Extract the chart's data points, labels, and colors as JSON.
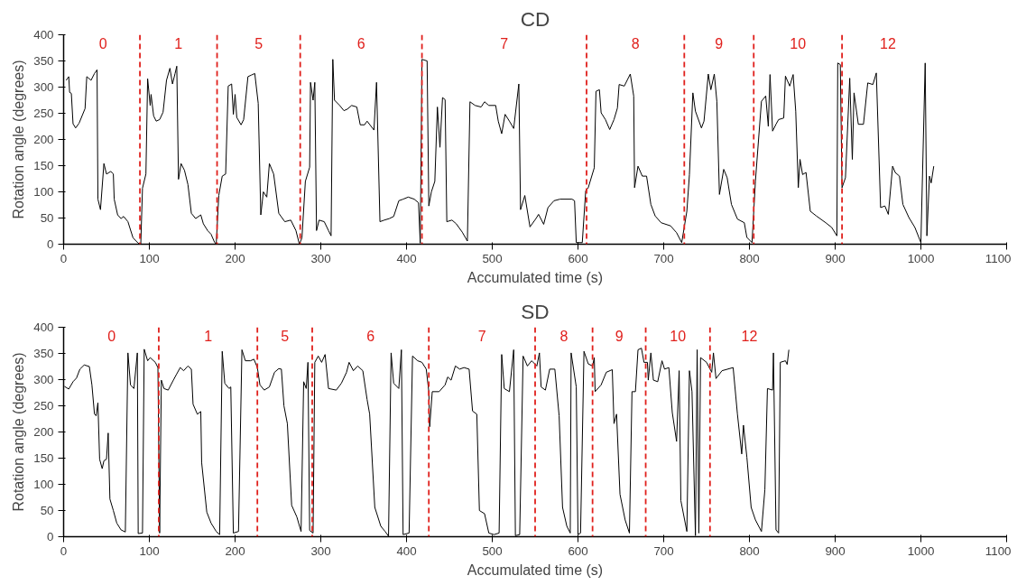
{
  "chart_data": [
    {
      "type": "line",
      "title": "CD",
      "xlabel": "Accumulated time (s)",
      "ylabel": "Rotation angle (degrees)",
      "xlim": [
        0,
        1100
      ],
      "xticks": [
        0,
        100,
        200,
        300,
        400,
        500,
        600,
        700,
        800,
        900,
        1000,
        1100
      ],
      "ylim": [
        0,
        400
      ],
      "yticks": [
        0,
        50,
        100,
        150,
        200,
        250,
        300,
        350,
        400
      ],
      "grid": false,
      "marker": "none",
      "line_style": "solid",
      "series": [
        {
          "color": "#000000",
          "x": [
            3,
            6,
            7,
            9,
            11,
            14,
            18,
            25,
            27,
            32,
            36,
            39,
            40,
            43,
            47,
            50,
            55,
            58,
            59,
            63,
            67,
            70,
            75,
            81,
            87,
            90,
            92,
            96,
            98,
            101,
            102,
            105,
            108,
            112,
            116,
            120,
            124,
            127,
            130,
            132,
            134,
            137,
            141,
            145,
            149,
            154,
            160,
            163,
            168,
            172,
            176,
            178,
            181,
            185,
            189,
            192,
            196,
            198,
            200,
            202,
            207,
            210,
            215,
            219,
            223,
            227,
            230,
            233,
            237,
            240,
            245,
            251,
            258,
            265,
            271,
            275,
            278,
            282,
            287,
            288,
            291,
            293,
            295,
            298,
            304,
            309,
            312,
            314,
            316,
            322,
            327,
            331,
            336,
            342,
            346,
            351,
            354,
            362,
            365,
            369,
            374,
            380,
            385,
            391,
            396,
            402,
            409,
            414,
            416,
            418,
            424,
            426,
            429,
            433,
            436,
            439,
            442,
            445,
            447,
            453,
            458,
            465,
            471,
            474,
            480,
            487,
            491,
            496,
            504,
            507,
            511,
            515,
            520,
            525,
            531,
            533,
            538,
            544,
            551,
            554,
            560,
            565,
            572,
            579,
            593,
            596,
            598,
            605,
            609,
            612,
            619,
            621,
            625,
            627,
            632,
            637,
            642,
            646,
            648,
            654,
            661,
            665,
            666,
            670,
            675,
            680,
            685,
            690,
            697,
            708,
            715,
            721,
            727,
            730,
            734,
            737,
            744,
            747,
            752,
            755,
            759,
            762,
            765,
            770,
            774,
            779,
            786,
            794,
            797,
            803,
            807,
            814,
            819,
            822,
            824,
            827,
            831,
            834,
            840,
            842,
            847,
            851,
            854,
            857,
            859,
            862,
            866,
            871,
            878,
            889,
            896,
            902,
            903,
            906,
            908,
            912,
            917,
            920,
            922,
            927,
            933,
            938,
            944,
            948,
            953,
            958,
            962,
            967,
            970,
            975,
            979,
            986,
            993,
            1000,
            1005,
            1007,
            1010,
            1012,
            1015
          ],
          "values": [
            313,
            320,
            290,
            288,
            230,
            222,
            231,
            259,
            320,
            313,
            326,
            333,
            86,
            66,
            154,
            134,
            139,
            134,
            86,
            56,
            49,
            53,
            43,
            12,
            2,
            0,
            107,
            134,
            316,
            265,
            286,
            245,
            235,
            238,
            252,
            313,
            336,
            306,
            326,
            340,
            124,
            154,
            141,
            114,
            59,
            49,
            56,
            39,
            26,
            19,
            4,
            0,
            93,
            130,
            134,
            302,
            306,
            248,
            286,
            242,
            228,
            238,
            320,
            323,
            326,
            269,
            56,
            100,
            90,
            154,
            134,
            59,
            43,
            46,
            26,
            0,
            12,
            120,
            147,
            309,
            275,
            309,
            26,
            46,
            43,
            26,
            16,
            353,
            275,
            265,
            255,
            258,
            265,
            262,
            228,
            228,
            235,
            218,
            309,
            43,
            46,
            49,
            53,
            83,
            86,
            90,
            86,
            79,
            2,
            353,
            350,
            73,
            100,
            120,
            262,
            185,
            280,
            276,
            43,
            46,
            39,
            23,
            6,
            272,
            265,
            262,
            272,
            265,
            265,
            235,
            211,
            248,
            235,
            221,
            306,
            66,
            93,
            33,
            49,
            57,
            38,
            70,
            83,
            86,
            86,
            83,
            3,
            3,
            102,
            108,
            146,
            292,
            295,
            251,
            238,
            219,
            238,
            260,
            305,
            302,
            325,
            283,
            108,
            149,
            130,
            130,
            76,
            54,
            41,
            35,
            22,
            3,
            63,
            133,
            289,
            254,
            222,
            235,
            325,
            295,
            325,
            273,
            95,
            143,
            127,
            76,
            48,
            41,
            13,
            3,
            121,
            273,
            283,
            225,
            324,
            216,
            229,
            238,
            241,
            321,
            302,
            324,
            254,
            108,
            162,
            133,
            137,
            63,
            54,
            41,
            32,
            16,
            346,
            343,
            108,
            127,
            317,
            162,
            289,
            229,
            229,
            308,
            305,
            327,
            70,
            73,
            57,
            149,
            137,
            130,
            76,
            51,
            32,
            3,
            346,
            16,
            130,
            117,
            149
          ]
        }
      ],
      "ref_lines": [
        {
          "axis": "x",
          "value": 89,
          "color": "#e0201c",
          "line_style": "dashed"
        },
        {
          "axis": "x",
          "value": 179,
          "color": "#e0201c",
          "line_style": "dashed"
        },
        {
          "axis": "x",
          "value": 276,
          "color": "#e0201c",
          "line_style": "dashed"
        },
        {
          "axis": "x",
          "value": 418,
          "color": "#e0201c",
          "line_style": "dashed"
        },
        {
          "axis": "x",
          "value": 610,
          "color": "#e0201c",
          "line_style": "dashed"
        },
        {
          "axis": "x",
          "value": 724,
          "color": "#e0201c",
          "line_style": "dashed"
        },
        {
          "axis": "x",
          "value": 805,
          "color": "#e0201c",
          "line_style": "dashed"
        },
        {
          "axis": "x",
          "value": 908,
          "color": "#e0201c",
          "line_style": "dashed"
        }
      ],
      "annotations": [
        "0",
        "1",
        "5",
        "6",
        "7",
        "8",
        "9",
        "10",
        "12"
      ]
    },
    {
      "type": "line",
      "title": "SD",
      "xlabel": "Accumulated time (s)",
      "ylabel": "Rotation angle (degrees)",
      "xlim": [
        0,
        1100
      ],
      "xticks": [
        0,
        100,
        200,
        300,
        400,
        500,
        600,
        700,
        800,
        900,
        1000,
        1100
      ],
      "ylim": [
        0,
        400
      ],
      "yticks": [
        0,
        50,
        100,
        150,
        200,
        250,
        300,
        350,
        400
      ],
      "grid": false,
      "marker": "none",
      "line_style": "solid",
      "series": [
        {
          "color": "#000000",
          "x": [
            1,
            6,
            11,
            15,
            19,
            24,
            30,
            33,
            36,
            38,
            40,
            42,
            45,
            47,
            50,
            52,
            54,
            58,
            62,
            67,
            72,
            75,
            78,
            82,
            86,
            87,
            92,
            94,
            98,
            101,
            107,
            110,
            112,
            114,
            117,
            122,
            128,
            132,
            136,
            140,
            145,
            149,
            151,
            156,
            160,
            161,
            167,
            172,
            178,
            182,
            185,
            188,
            193,
            195,
            198,
            204,
            208,
            212,
            218,
            222,
            226,
            229,
            234,
            240,
            246,
            251,
            254,
            257,
            261,
            266,
            272,
            277,
            280,
            283,
            285,
            287,
            291,
            293,
            297,
            301,
            305,
            309,
            318,
            324,
            330,
            333,
            338,
            343,
            349,
            354,
            357,
            363,
            370,
            375,
            379,
            382,
            385,
            391,
            394,
            396,
            403,
            407,
            413,
            418,
            423,
            426,
            427,
            430,
            438,
            445,
            448,
            452,
            457,
            462,
            467,
            473,
            477,
            482,
            485,
            491,
            496,
            502,
            508,
            511,
            514,
            520,
            525,
            527,
            532,
            536,
            541,
            546,
            552,
            555,
            557,
            562,
            567,
            573,
            578,
            582,
            587,
            591,
            592,
            598,
            600,
            603,
            607,
            612,
            617,
            619,
            620,
            627,
            633,
            640,
            642,
            645,
            649,
            655,
            660,
            663,
            667,
            670,
            674,
            677,
            681,
            682,
            685,
            688,
            693,
            698,
            701,
            706,
            710,
            715,
            718,
            720,
            727,
            730,
            733,
            737,
            739,
            741,
            743,
            750,
            756,
            758,
            761,
            768,
            781,
            786,
            791,
            793,
            797,
            802,
            807,
            814,
            818,
            821,
            827,
            828,
            831,
            834,
            836,
            842,
            844,
            846
          ],
          "values": [
            287,
            282,
            296,
            303,
            320,
            328,
            325,
            290,
            234,
            231,
            256,
            148,
            130,
            145,
            148,
            198,
            72,
            50,
            26,
            13,
            9,
            351,
            290,
            283,
            351,
            6,
            7,
            358,
            336,
            342,
            333,
            323,
            7,
            299,
            283,
            280,
            299,
            311,
            323,
            317,
            326,
            320,
            253,
            234,
            239,
            142,
            47,
            26,
            10,
            4,
            354,
            293,
            283,
            286,
            7,
            10,
            357,
            336,
            336,
            339,
            323,
            290,
            280,
            286,
            314,
            321,
            320,
            250,
            216,
            60,
            38,
            10,
            296,
            283,
            333,
            12,
            7,
            333,
            345,
            333,
            348,
            283,
            280,
            293,
            314,
            333,
            317,
            326,
            317,
            262,
            234,
            56,
            20,
            10,
            1,
            351,
            293,
            283,
            357,
            4,
            7,
            345,
            336,
            333,
            320,
            277,
            210,
            277,
            277,
            290,
            305,
            299,
            326,
            320,
            323,
            320,
            240,
            234,
            50,
            44,
            7,
            4,
            7,
            348,
            283,
            277,
            357,
            2,
            4,
            345,
            326,
            336,
            326,
            351,
            286,
            280,
            320,
            320,
            231,
            56,
            20,
            7,
            351,
            286,
            4,
            7,
            354,
            330,
            326,
            342,
            277,
            290,
            314,
            319,
            216,
            234,
            81,
            32,
            7,
            277,
            277,
            357,
            360,
            333,
            333,
            299,
            351,
            299,
            296,
            336,
            320,
            323,
            237,
            182,
            317,
            69,
            10,
            317,
            277,
            2,
            357,
            7,
            342,
            333,
            314,
            351,
            302,
            317,
            323,
            234,
            158,
            213,
            152,
            56,
            32,
            10,
            90,
            283,
            280,
            351,
            13,
            7,
            333,
            336,
            329,
            357
          ]
        }
      ],
      "ref_lines": [
        {
          "axis": "x",
          "value": 111,
          "color": "#e0201c",
          "line_style": "dashed"
        },
        {
          "axis": "x",
          "value": 226,
          "color": "#e0201c",
          "line_style": "dashed"
        },
        {
          "axis": "x",
          "value": 290,
          "color": "#e0201c",
          "line_style": "dashed"
        },
        {
          "axis": "x",
          "value": 426,
          "color": "#e0201c",
          "line_style": "dashed"
        },
        {
          "axis": "x",
          "value": 550,
          "color": "#e0201c",
          "line_style": "dashed"
        },
        {
          "axis": "x",
          "value": 617,
          "color": "#e0201c",
          "line_style": "dashed"
        },
        {
          "axis": "x",
          "value": 679,
          "color": "#e0201c",
          "line_style": "dashed"
        },
        {
          "axis": "x",
          "value": 754,
          "color": "#e0201c",
          "line_style": "dashed"
        }
      ],
      "annotations": [
        "0",
        "1",
        "5",
        "6",
        "7",
        "8",
        "9",
        "10",
        "12"
      ]
    }
  ]
}
